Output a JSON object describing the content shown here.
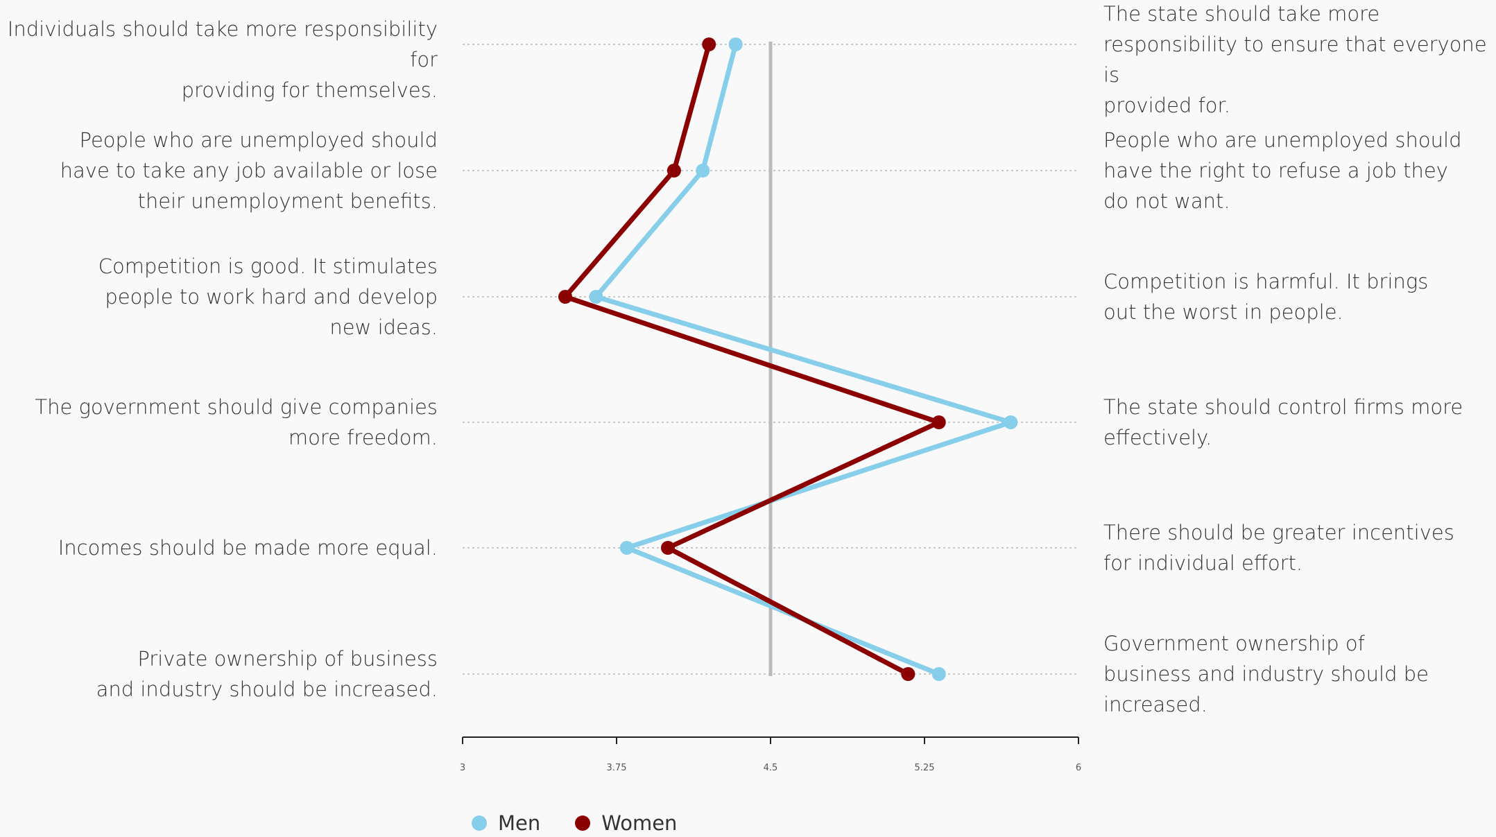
{
  "chart_data": {
    "type": "line",
    "orientation": "horizontal",
    "xlim": [
      3,
      6
    ],
    "x_ticks": [
      "3",
      "3.75",
      "4.5",
      "5.25",
      "6"
    ],
    "midline": 4.5,
    "statements": [
      {
        "left": "Individuals should take more responsibility for\nproviding for themselves.",
        "right": "The state should take more\nresponsibility to ensure that everyone is\nprovided for."
      },
      {
        "left": "People who are unemployed should\nhave to take any job available or lose\ntheir unemployment benefits.",
        "right": "People who are unemployed should\nhave the right to refuse a job they\ndo not want."
      },
      {
        "left": "Competition is good. It stimulates\npeople to work hard and develop\nnew ideas.",
        "right": "Competition is harmful. It brings\nout the worst in people."
      },
      {
        "left": "The government should give companies\nmore freedom.",
        "right": "The state should control firms more\neffectively."
      },
      {
        "left": "Incomes should be made more equal.",
        "right": "There should be greater incentives\nfor individual effort."
      },
      {
        "left": "Private ownership of business\nand industry should be increased.",
        "right": "Government ownership of\nbusiness and industry should be\nincreased."
      }
    ],
    "series": [
      {
        "name": "Men",
        "color": "#87ceeb",
        "values": [
          4.33,
          4.17,
          3.65,
          5.67,
          3.8,
          5.32
        ]
      },
      {
        "name": "Women",
        "color": "#8b0000",
        "values": [
          4.2,
          4.03,
          3.5,
          5.32,
          4.0,
          5.17
        ]
      }
    ],
    "colors": {
      "axis": "#222222",
      "midline": "#bbbbbb",
      "guide": "#c8c8c8"
    },
    "legend_position": "bottom-left"
  }
}
